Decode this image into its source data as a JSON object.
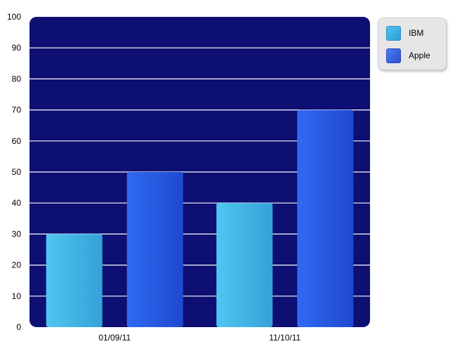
{
  "chart_data": {
    "type": "bar",
    "title": "",
    "xlabel": "",
    "ylabel": "",
    "categories": [
      "01/09/11",
      "11/10/11"
    ],
    "series": [
      {
        "name": "IBM",
        "values": [
          30,
          40
        ],
        "color": "#3fb4e6"
      },
      {
        "name": "Apple",
        "values": [
          50,
          70
        ],
        "color": "#2a5ee6"
      }
    ],
    "ylim": [
      0,
      100
    ],
    "yticks": [
      0,
      10,
      20,
      30,
      40,
      50,
      60,
      70,
      80,
      90,
      100
    ],
    "grid": true,
    "legend": "top-right",
    "plot_background": "#0d0f73",
    "grid_color": "#ffffff"
  },
  "legend": {
    "items": [
      {
        "label": "IBM",
        "color": "#3fb4e6"
      },
      {
        "label": "Apple",
        "color": "#2a5ee6"
      }
    ]
  }
}
